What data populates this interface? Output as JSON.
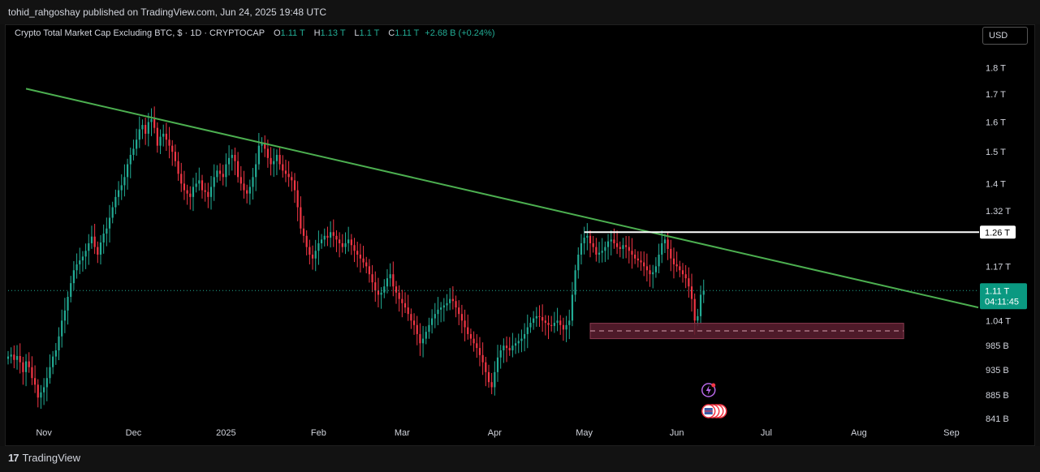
{
  "publisher_line": "tohid_rahgoshay published on TradingView.com, Jun 24, 2025 19:48 UTC",
  "footer": {
    "brand": "TradingView",
    "logo_mark": "17"
  },
  "header": {
    "symbol": "Crypto Total Market Cap Excluding BTC, $ · 1D · CRYPTOCAP",
    "o_label": "O",
    "o_value": "1.11 T",
    "h_label": "H",
    "h_value": "1.13 T",
    "l_label": "L",
    "l_value": "1.1 T",
    "c_label": "C",
    "c_value": "1.11 T",
    "change": "+2.68 B (+0.24%)"
  },
  "currency_button": "USD",
  "colors": {
    "up": "#22ab94",
    "down": "#f23645",
    "trendline": "#4caf50",
    "zone": "#5c1f30",
    "background": "#000000",
    "price_label": "#0a9981"
  },
  "chart_data": {
    "type": "candlestick",
    "title": "Crypto Total Market Cap Excluding BTC",
    "x_axis_ticks": [
      "Nov",
      "Dec",
      "2025",
      "Feb",
      "Mar",
      "Apr",
      "May",
      "Jun",
      "Jul",
      "Aug",
      "Sep"
    ],
    "y_axis_ticks": [
      "1.8 T",
      "1.7 T",
      "1.6 T",
      "1.5 T",
      "1.4 T",
      "1.32 T",
      "1.17 T",
      "1.04 T",
      "985 B",
      "935 B",
      "885 B",
      "841 B"
    ],
    "y_scale": "log",
    "ylim": [
      841000000000,
      1850000000000
    ],
    "x_range": [
      "2024-10-20",
      "2025-09-10"
    ],
    "last_price": {
      "label": "1.11 T",
      "countdown": "04:11:45",
      "value": 1110000000000
    },
    "horizontal_resistance": {
      "label": "1.26 T",
      "value": 1260000000000,
      "from": "2025-05-01"
    },
    "trendline": {
      "from": {
        "date": "2024-10-26",
        "value": 1720000000000
      },
      "to": {
        "date": "2025-09-10",
        "value": 1070000000000
      }
    },
    "support_zone": {
      "from": "2025-05-03",
      "to": "2025-08-16",
      "low": 1000000000000,
      "high": 1034000000000,
      "mid": 1017000000000
    },
    "close_series": {
      "start": "2024-10-20",
      "values": [
        962,
        966,
        955,
        963,
        950,
        930,
        952,
        940,
        918,
        905,
        880,
        890,
        900,
        918,
        940,
        962,
        975,
        1005,
        1040,
        1063,
        1095,
        1128,
        1160,
        1175,
        1185,
        1195,
        1210,
        1230,
        1248,
        1220,
        1200,
        1232,
        1256,
        1270,
        1300,
        1330,
        1360,
        1380,
        1395,
        1420,
        1460,
        1490,
        1510,
        1540,
        1575,
        1590,
        1560,
        1600,
        1610,
        1580,
        1520,
        1550,
        1560,
        1540,
        1520,
        1500,
        1470,
        1430,
        1400,
        1380,
        1370,
        1360,
        1390,
        1400,
        1410,
        1380,
        1375,
        1360,
        1390,
        1420,
        1440,
        1430,
        1420,
        1460,
        1480,
        1490,
        1470,
        1420,
        1400,
        1380,
        1370,
        1390,
        1420,
        1460,
        1520,
        1530,
        1510,
        1480,
        1460,
        1470,
        1490,
        1460,
        1440,
        1430,
        1420,
        1410,
        1380,
        1330,
        1270,
        1250,
        1220,
        1200,
        1190,
        1210,
        1230,
        1240,
        1250,
        1245,
        1260,
        1250,
        1240,
        1230,
        1220,
        1230,
        1240,
        1225,
        1210,
        1200,
        1190,
        1180,
        1170,
        1150,
        1130,
        1110,
        1100,
        1105,
        1120,
        1140,
        1150,
        1120,
        1105,
        1090,
        1080,
        1070,
        1055,
        1040,
        1030,
        1010,
        990,
        1000,
        1015,
        1030,
        1045,
        1055,
        1065,
        1070,
        1075,
        1080,
        1090,
        1085,
        1070,
        1055,
        1040,
        1025,
        1010,
        1000,
        990,
        980,
        965,
        950,
        930,
        910,
        900,
        930,
        960,
        975,
        985,
        980,
        975,
        985,
        990,
        995,
        1000,
        1010,
        1025,
        1035,
        1045,
        1050,
        1048,
        1040,
        1035,
        1030,
        1028,
        1035,
        1040,
        1030,
        1020,
        1030,
        1040,
        1100,
        1160,
        1200,
        1230,
        1245,
        1250,
        1230,
        1220,
        1200,
        1205,
        1210,
        1220,
        1235,
        1240,
        1230,
        1220,
        1215,
        1225,
        1220,
        1210,
        1200,
        1190,
        1185,
        1180,
        1170,
        1160,
        1150,
        1155,
        1170,
        1200,
        1230,
        1240,
        1215,
        1190,
        1175,
        1170,
        1160,
        1150,
        1140,
        1120,
        1090,
        1040,
        1050,
        1100,
        1110
      ]
    }
  }
}
